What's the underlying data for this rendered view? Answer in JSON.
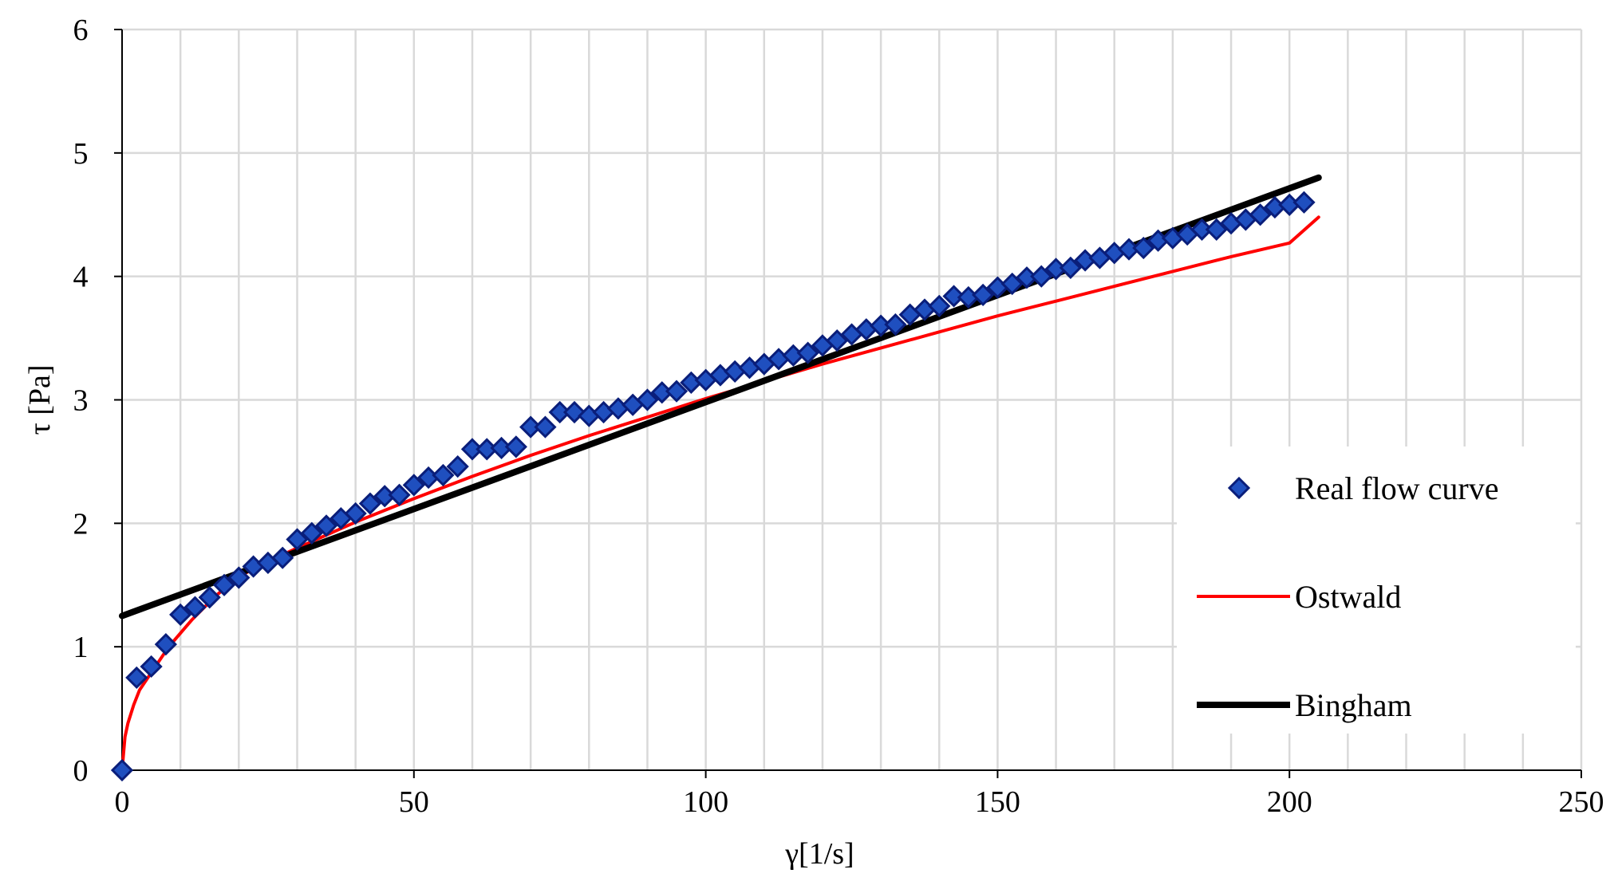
{
  "chart_data": {
    "type": "scatter",
    "title": "",
    "xlabel": "γ[1/s]",
    "ylabel": "τ [Pa]",
    "xlim": [
      0,
      250
    ],
    "ylim": [
      0,
      6
    ],
    "x_ticks": [
      "0",
      "50",
      "100",
      "150",
      "200",
      "250"
    ],
    "y_ticks": [
      "0",
      "1",
      "2",
      "3",
      "4",
      "5",
      "6"
    ],
    "grid": {
      "vertical": true,
      "horizontal": true,
      "x_step": 10,
      "y_step": 1
    },
    "legend_position": "right",
    "series": [
      {
        "name": "Real flow curve",
        "kind": "markers",
        "marker": "diamond",
        "color": "#1f4fbf",
        "edge_color": "#0a1e7a",
        "x": [
          0,
          2.5,
          5,
          7.5,
          10,
          12.5,
          15,
          17.5,
          20,
          22.5,
          25,
          27.5,
          30,
          32.5,
          35,
          37.5,
          40,
          42.5,
          45,
          47.5,
          50,
          52.5,
          55,
          57.5,
          60,
          62.5,
          65,
          67.5,
          70,
          72.5,
          75,
          77.5,
          80,
          82.5,
          85,
          87.5,
          90,
          92.5,
          95,
          97.5,
          100,
          102.5,
          105,
          107.5,
          110,
          112.5,
          115,
          117.5,
          120,
          122.5,
          125,
          127.5,
          130,
          132.5,
          135,
          137.5,
          140,
          142.5,
          145,
          147.5,
          150,
          152.5,
          155,
          157.5,
          160,
          162.5,
          165,
          167.5,
          170,
          172.5,
          175,
          177.5,
          180,
          182.5,
          185,
          187.5,
          190,
          192.5,
          195,
          197.5,
          200,
          202.5
        ],
        "y": [
          0,
          0.75,
          0.84,
          1.02,
          1.26,
          1.32,
          1.4,
          1.5,
          1.56,
          1.65,
          1.68,
          1.72,
          1.87,
          1.92,
          1.98,
          2.04,
          2.08,
          2.16,
          2.22,
          2.23,
          2.31,
          2.37,
          2.39,
          2.46,
          2.6,
          2.6,
          2.61,
          2.62,
          2.78,
          2.78,
          2.9,
          2.9,
          2.87,
          2.9,
          2.93,
          2.96,
          3.0,
          3.06,
          3.07,
          3.14,
          3.16,
          3.2,
          3.23,
          3.26,
          3.29,
          3.33,
          3.36,
          3.38,
          3.44,
          3.48,
          3.53,
          3.57,
          3.6,
          3.61,
          3.69,
          3.73,
          3.76,
          3.84,
          3.83,
          3.85,
          3.91,
          3.94,
          3.99,
          4.0,
          4.06,
          4.07,
          4.13,
          4.15,
          4.19,
          4.22,
          4.23,
          4.29,
          4.31,
          4.34,
          4.38,
          4.38,
          4.43,
          4.46,
          4.5,
          4.56,
          4.58,
          4.6
        ]
      },
      {
        "name": "Ostwald",
        "kind": "line",
        "color": "#ff0000",
        "x": [
          0,
          0.5,
          1,
          2,
          3,
          5,
          8,
          12,
          16,
          20,
          25,
          30,
          40,
          50,
          60,
          70,
          80,
          90,
          100,
          110,
          120,
          130,
          140,
          150,
          160,
          170,
          180,
          190,
          200,
          205
        ],
        "y": [
          0,
          0.27,
          0.38,
          0.53,
          0.65,
          0.79,
          1.0,
          1.22,
          1.41,
          1.57,
          1.69,
          1.8,
          2.01,
          2.2,
          2.38,
          2.55,
          2.71,
          2.86,
          3.01,
          3.15,
          3.29,
          3.42,
          3.55,
          3.68,
          3.8,
          3.92,
          4.04,
          4.16,
          4.27,
          4.48
        ]
      },
      {
        "name": "Bingham",
        "kind": "line",
        "color": "#000000",
        "x": [
          0,
          205
        ],
        "y": [
          1.25,
          4.8
        ]
      }
    ]
  }
}
